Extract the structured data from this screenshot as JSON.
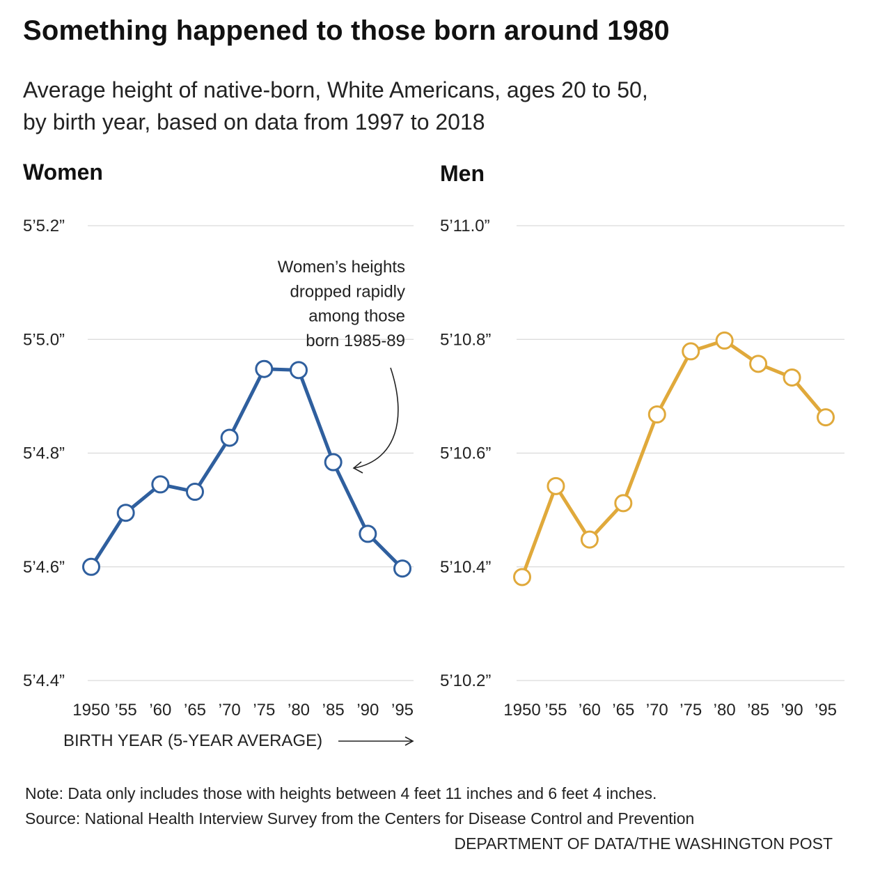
{
  "title": "Something happened to those born around 1980",
  "subtitle_lines": [
    "Average height of native-born, White Americans, ages 20 to 50,",
    "by birth year, based on data from 1997 to 2018"
  ],
  "chart_data": [
    {
      "type": "line",
      "title": "Women",
      "categories": [
        "1950",
        "’55",
        "’60",
        "’65",
        "’70",
        "’75",
        "’80",
        "’85",
        "’90",
        "’95"
      ],
      "series": [
        {
          "name": "",
          "color": "#2f5f9e",
          "values_inches": [
            64.6,
            64.695,
            64.745,
            64.732,
            64.827,
            64.948,
            64.946,
            64.784,
            64.658,
            64.597
          ]
        }
      ],
      "yticks_inches": [
        64.4,
        64.6,
        64.8,
        65.0,
        65.2
      ],
      "ytick_labels": [
        "5’4.4”",
        "5’4.6”",
        "5’4.8”",
        "5’5.0”",
        "5’5.2”"
      ],
      "ylim_inches": [
        64.4,
        65.2
      ],
      "xlabel": "BIRTH YEAR (5-YEAR AVERAGE)",
      "annotation": {
        "lines": [
          "Women’s heights",
          "dropped rapidly",
          "among those",
          "born 1985-89"
        ],
        "points_to": "’85"
      },
      "grid": true
    },
    {
      "type": "line",
      "title": "Men",
      "categories": [
        "1950",
        "’55",
        "’60",
        "’65",
        "’70",
        "’75",
        "’80",
        "’85",
        "’90",
        "’95"
      ],
      "series": [
        {
          "name": "",
          "color": "#e0a93b",
          "values_inches": [
            70.382,
            70.542,
            70.448,
            70.512,
            70.668,
            70.779,
            70.798,
            70.757,
            70.733,
            70.663
          ]
        }
      ],
      "yticks_inches": [
        70.2,
        70.4,
        70.6,
        70.8,
        71.0
      ],
      "ytick_labels": [
        "5’10.2”",
        "5’10.4”",
        "5’10.6”",
        "5’10.8”",
        "5’11.0”"
      ],
      "ylim_inches": [
        70.2,
        71.0
      ],
      "xlabel": "",
      "grid": true
    }
  ],
  "footer": {
    "note": "Note: Data only includes those with heights between 4 feet 11 inches and 6 feet 4 inches.",
    "source": "Source: National Health Interview Survey from the Centers for Disease Control and Prevention",
    "credit": "DEPARTMENT OF DATA/THE WASHINGTON POST"
  }
}
